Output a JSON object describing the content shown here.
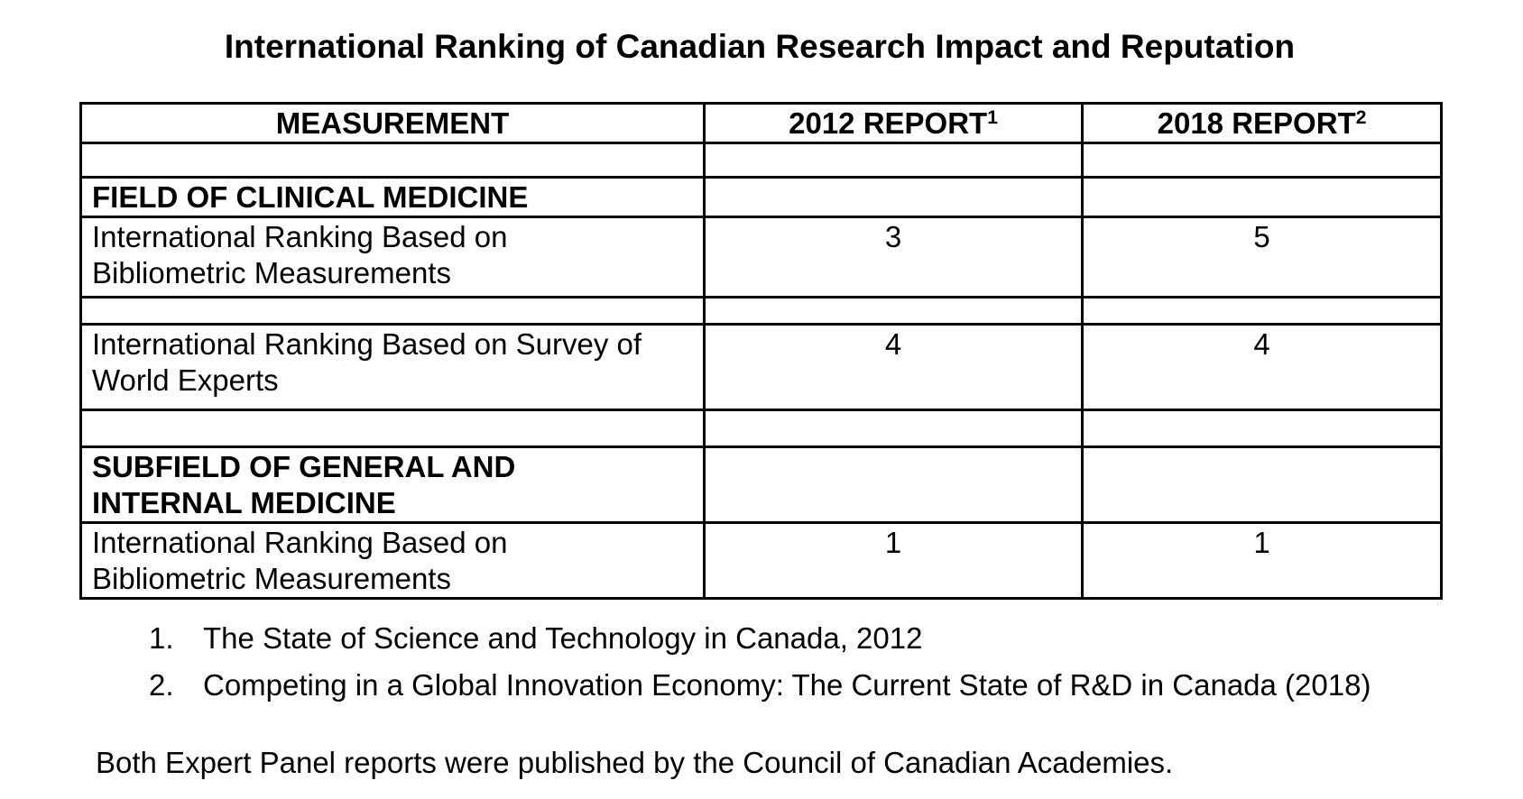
{
  "page": {
    "title": "International Ranking of Canadian Research Impact and Reputation"
  },
  "table": {
    "header": {
      "measurement": "MEASUREMENT",
      "report2012": {
        "text": "2012 REPORT",
        "sup": "1"
      },
      "report2018": {
        "text": "2018 REPORT",
        "sup": "2"
      }
    },
    "rows": [
      {
        "type": "spacer"
      },
      {
        "type": "section",
        "label": [
          "FIELD OF CLINICAL MEDICINE"
        ]
      },
      {
        "type": "data",
        "label": [
          "International Ranking Based on",
          "Bibliometric Measurements"
        ],
        "report2012": "3",
        "report2018": "5"
      },
      {
        "type": "spacer"
      },
      {
        "type": "data",
        "label": [
          "International Ranking Based on Survey of",
          "World Experts"
        ],
        "report2012": "4",
        "report2018": "4"
      },
      {
        "type": "spacer"
      },
      {
        "type": "section",
        "label": [
          "SUBFIELD OF GENERAL AND",
          "INTERNAL MEDICINE"
        ]
      },
      {
        "type": "data",
        "label": [
          "International Ranking Based on",
          "Bibliometric Measurements"
        ],
        "report2012": "1",
        "report2018": "1"
      }
    ]
  },
  "footnotes": [
    {
      "num": "1.",
      "text": "The State of Science and Technology in Canada, 2012"
    },
    {
      "num": "2.",
      "text": "Competing in a Global Innovation Economy: The Current State of R&D in Canada (2018)"
    }
  ],
  "closing_note": "Both Expert Panel reports were published by the Council of Canadian Academies."
}
